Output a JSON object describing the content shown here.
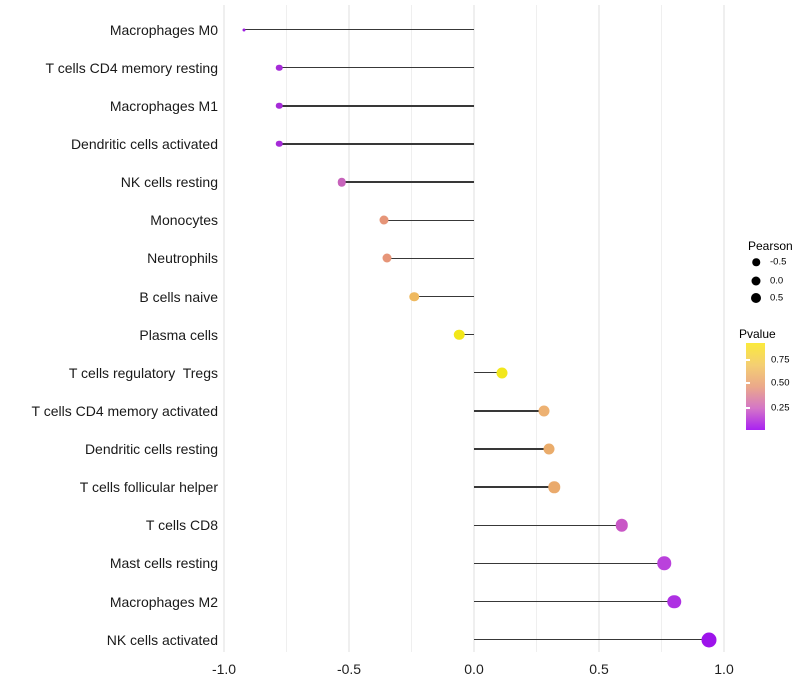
{
  "chart_data": {
    "type": "lollipop",
    "orientation": "horizontal",
    "title": "",
    "xlabel": "",
    "ylabel": "",
    "xlim": [
      -1.0,
      1.0
    ],
    "gridline_step": 0.25,
    "grid_on": true,
    "x_ticks": [
      {
        "label": "-1.0",
        "value": -1.0
      },
      {
        "label": "-0.5",
        "value": -0.5
      },
      {
        "label": "0.0",
        "value": 0.0
      },
      {
        "label": "0.5",
        "value": 0.5
      },
      {
        "label": "1.0",
        "value": 1.0
      }
    ],
    "points": [
      {
        "label": "Macrophages M0",
        "pearson": -0.92,
        "color": "#9E1DE0",
        "diameter": 3
      },
      {
        "label": "T cells CD4 memory resting",
        "pearson": -0.78,
        "color": "#A62BD8",
        "diameter": 6.5
      },
      {
        "label": "Macrophages M1",
        "pearson": -0.78,
        "color": "#A62BD8",
        "diameter": 6.5
      },
      {
        "label": "Dendritic cells activated",
        "pearson": -0.78,
        "color": "#A62BD8",
        "diameter": 6.5
      },
      {
        "label": "NK cells resting",
        "pearson": -0.53,
        "color": "#C763BB",
        "diameter": 8.5
      },
      {
        "label": "Monocytes",
        "pearson": -0.36,
        "color": "#E69578",
        "diameter": 9
      },
      {
        "label": "Neutrophils",
        "pearson": -0.35,
        "color": "#E69578",
        "diameter": 9
      },
      {
        "label": "B cells naive",
        "pearson": -0.24,
        "color": "#EFB95F",
        "diameter": 9.5
      },
      {
        "label": "Plasma cells",
        "pearson": -0.06,
        "color": "#F2E719",
        "diameter": 10.5
      },
      {
        "label": "T cells regulatory  Tregs",
        "pearson": 0.11,
        "color": "#F2E71C",
        "diameter": 11
      },
      {
        "label": "T cells CD4 memory activated",
        "pearson": 0.28,
        "color": "#EDB172",
        "diameter": 11
      },
      {
        "label": "Dendritic cells resting",
        "pearson": 0.3,
        "color": "#EAAC6B",
        "diameter": 11
      },
      {
        "label": "T cells follicular helper",
        "pearson": 0.32,
        "color": "#EAAA6C",
        "diameter": 11.5
      },
      {
        "label": "T cells CD8",
        "pearson": 0.59,
        "color": "#C957C6",
        "diameter": 12.5
      },
      {
        "label": "Mast cells resting",
        "pearson": 0.76,
        "color": "#BA41DC",
        "diameter": 13.5
      },
      {
        "label": "Macrophages M2",
        "pearson": 0.8,
        "color": "#AE30E3",
        "diameter": 13.5
      },
      {
        "label": "NK cells activated",
        "pearson": 0.94,
        "color": "#9D13EB",
        "diameter": 15
      }
    ],
    "stick_color": "#383838",
    "gridline_color": "#efefef",
    "legend": {
      "size_legend": {
        "title": "Pearson",
        "items": [
          {
            "label": "-0.5",
            "diameter": 7.5
          },
          {
            "label": "0.0",
            "diameter": 9
          },
          {
            "label": "0.5",
            "diameter": 10
          }
        ]
      },
      "color_legend": {
        "title": "Pvalue",
        "tick_labels": [
          "0.75",
          "0.50",
          "0.25"
        ],
        "gradient_top_to_bottom": [
          "#FBEA3C",
          "#F4CF72",
          "#EBA98A",
          "#D476C7",
          "#A922F2"
        ]
      }
    }
  }
}
